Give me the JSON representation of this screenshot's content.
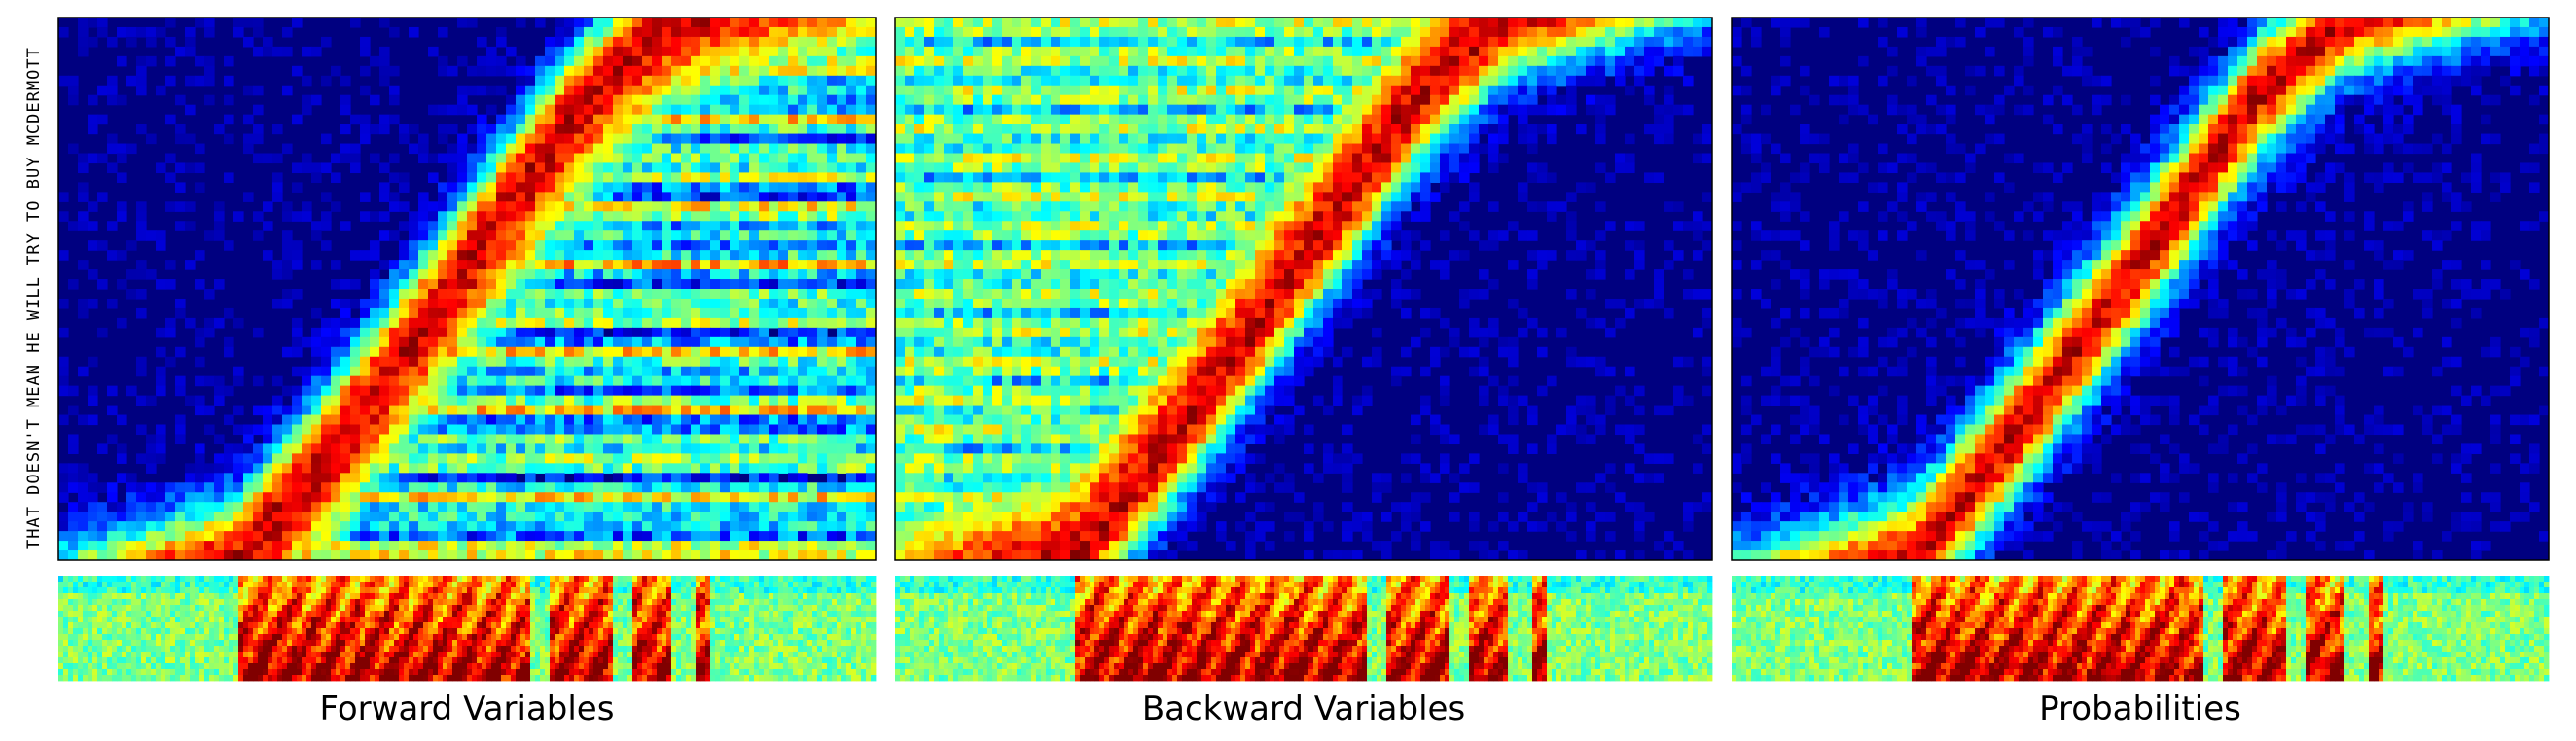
{
  "figure": {
    "ylabel": "THAT DOESN'T MEAN HE WILL TRY TO BUY MCDERMOTT",
    "colormap": "jet",
    "colors": {
      "background": "#000080",
      "low": "#0000c0",
      "mid": "#80ffc0",
      "high": "#ffcc00",
      "peak": "#800000",
      "spectrogram_base": "#b8ff60"
    }
  },
  "chart_data": [
    {
      "type": "heatmap",
      "title": "Forward Variables",
      "xlabel": "",
      "ylabel": "THAT DOESN'T MEAN HE WILL TRY TO BUY MCDERMOTT",
      "colormap": "jet",
      "grid": false,
      "x_range": [
        0,
        1
      ],
      "y_range": [
        0,
        1
      ],
      "alignment_path": [
        [
          0.0,
          0.0
        ],
        [
          0.22,
          0.0
        ],
        [
          0.33,
          0.2
        ],
        [
          0.5,
          0.55
        ],
        [
          0.64,
          0.85
        ],
        [
          0.75,
          1.0
        ]
      ],
      "spread_ahead": 0.12,
      "spread_behind": 0.2,
      "fill_after_front": "upper-right"
    },
    {
      "type": "heatmap",
      "title": "Backward Variables",
      "xlabel": "",
      "ylabel": "",
      "colormap": "jet",
      "grid": false,
      "x_range": [
        0,
        1
      ],
      "y_range": [
        0,
        1
      ],
      "alignment_path": [
        [
          0.0,
          0.0
        ],
        [
          0.22,
          0.0
        ],
        [
          0.33,
          0.2
        ],
        [
          0.5,
          0.55
        ],
        [
          0.64,
          0.85
        ],
        [
          0.75,
          1.0
        ]
      ],
      "spread_ahead": 0.2,
      "spread_behind": 0.12,
      "fill_after_front": "lower-left"
    },
    {
      "type": "heatmap",
      "title": "Probabilities",
      "xlabel": "",
      "ylabel": "",
      "colormap": "jet",
      "grid": false,
      "x_range": [
        0,
        1
      ],
      "y_range": [
        0,
        1
      ],
      "alignment_path": [
        [
          0.0,
          0.0
        ],
        [
          0.22,
          0.0
        ],
        [
          0.33,
          0.2
        ],
        [
          0.5,
          0.55
        ],
        [
          0.64,
          0.85
        ],
        [
          0.75,
          1.0
        ]
      ],
      "spread_ahead": 0.12,
      "spread_behind": 0.12,
      "fill_after_front": "none"
    }
  ],
  "spectrogram": {
    "colormap": "jet",
    "speech_segments": [
      [
        0.22,
        0.3
      ],
      [
        0.3,
        0.38
      ],
      [
        0.38,
        0.49
      ],
      [
        0.49,
        0.55
      ],
      [
        0.55,
        0.58
      ],
      [
        0.6,
        0.68
      ],
      [
        0.7,
        0.75
      ],
      [
        0.78,
        0.8
      ]
    ]
  }
}
